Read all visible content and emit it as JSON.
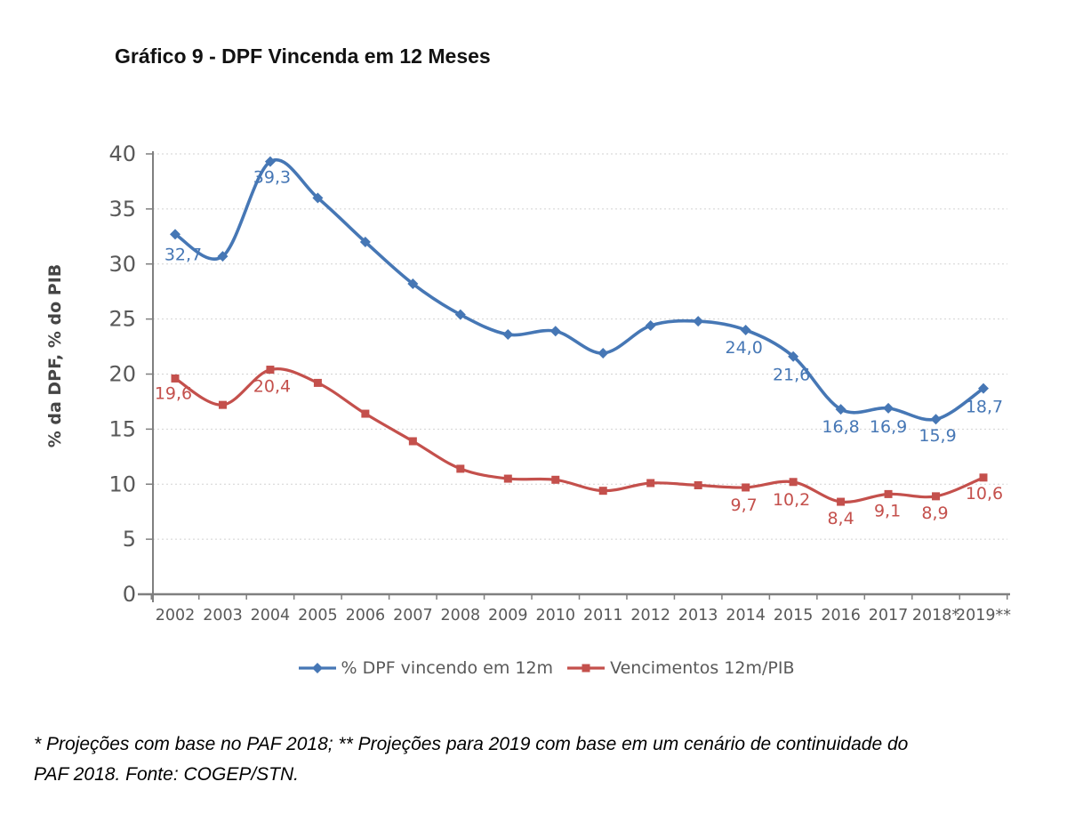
{
  "page": {
    "title": "Gráfico 9 - DPF Vincenda em 12 Meses",
    "footnote_line1": "* Projeções com base no PAF 2018; ** Projeções para 2019 com base em um cenário de continuidade do",
    "footnote_line2": "PAF 2018. Fonte: COGEP/STN."
  },
  "chart_data": {
    "type": "line",
    "title": "Gráfico 9 - DPF Vincenda em 12 Meses",
    "xlabel": "",
    "ylabel": "% da DPF, % do PIB",
    "ylim": [
      0,
      40
    ],
    "ytick_step": 5,
    "yticks": [
      0,
      5,
      10,
      15,
      20,
      25,
      30,
      35,
      40
    ],
    "grid": "horizontal-dashed",
    "legend_position": "bottom-center",
    "line_style": "smooth",
    "axis_color": "#7f7f7f",
    "tick_label_color": "#595959",
    "gridline_color": "#d2d2d2",
    "categories": [
      "2002",
      "2003",
      "2004",
      "2005",
      "2006",
      "2007",
      "2008",
      "2009",
      "2010",
      "2011",
      "2012",
      "2013",
      "2014",
      "2015",
      "2016",
      "2017",
      "2018*",
      "2019**"
    ],
    "series": [
      {
        "name": "% DPF vincendo em 12m",
        "color": "#4677b5",
        "marker": "diamond",
        "values": [
          32.7,
          30.7,
          39.3,
          36.0,
          32.0,
          28.2,
          25.4,
          23.6,
          23.9,
          21.9,
          24.4,
          24.8,
          24.0,
          21.6,
          16.8,
          16.9,
          15.9,
          18.7
        ],
        "point_labels": [
          {
            "index": 0,
            "text": "32,7",
            "dx": 9,
            "dy": 29
          },
          {
            "index": 2,
            "text": "39,3",
            "dx": 2,
            "dy": 24
          },
          {
            "index": 12,
            "text": "24,0",
            "dx": -2,
            "dy": 26
          },
          {
            "index": 13,
            "text": "21,6",
            "dx": -2,
            "dy": 27
          },
          {
            "index": 14,
            "text": "16,8",
            "dx": 0,
            "dy": 26
          },
          {
            "index": 15,
            "text": "16,9",
            "dx": 0,
            "dy": 27
          },
          {
            "index": 16,
            "text": "15,9",
            "dx": 2,
            "dy": 25
          },
          {
            "index": 17,
            "text": "18,7",
            "dx": 1,
            "dy": 27
          }
        ]
      },
      {
        "name": "Vencimentos 12m/PIB",
        "color": "#c4504c",
        "marker": "square",
        "values": [
          19.6,
          17.2,
          20.4,
          19.2,
          16.4,
          13.9,
          11.4,
          10.5,
          10.4,
          9.4,
          10.1,
          9.9,
          9.7,
          10.2,
          8.4,
          9.1,
          8.9,
          10.6
        ],
        "point_labels": [
          {
            "index": 0,
            "text": "19,6",
            "dx": -2,
            "dy": 23
          },
          {
            "index": 2,
            "text": "20,4",
            "dx": 2,
            "dy": 25
          },
          {
            "index": 12,
            "text": "9,7",
            "dx": -2,
            "dy": 26
          },
          {
            "index": 13,
            "text": "10,2",
            "dx": -2,
            "dy": 26
          },
          {
            "index": 14,
            "text": "8,4",
            "dx": 0,
            "dy": 25
          },
          {
            "index": 15,
            "text": "9,1",
            "dx": -1,
            "dy": 25
          },
          {
            "index": 16,
            "text": "8,9",
            "dx": -1,
            "dy": 25
          },
          {
            "index": 17,
            "text": "10,6",
            "dx": 1,
            "dy": 24
          }
        ]
      }
    ]
  }
}
